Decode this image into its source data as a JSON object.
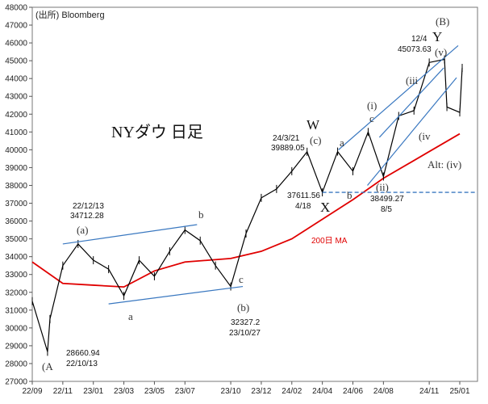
{
  "chart_data": {
    "type": "line",
    "title": "NYダウ 日足",
    "source": "(出所) Bloomberg",
    "ylim": [
      27000,
      48000
    ],
    "y_ticks": [
      27000,
      28000,
      29000,
      30000,
      31000,
      32000,
      33000,
      34000,
      35000,
      36000,
      37000,
      38000,
      39000,
      40000,
      41000,
      42000,
      43000,
      44000,
      45000,
      46000,
      47000,
      48000
    ],
    "x_ticks": [
      "22/09",
      "22/11",
      "23/01",
      "23/03",
      "23/05",
      "23/07",
      "23/10",
      "23/12",
      "24/02",
      "24/04",
      "24/06",
      "24/08",
      "24/11",
      "25/01"
    ],
    "series": [
      {
        "name": "",
        "color": "#000000",
        "x": [
          "22/09",
          "22/10",
          "22/10",
          "22/11",
          "22/12",
          "23/01",
          "23/02",
          "23/03",
          "23/04",
          "23/05",
          "23/06",
          "23/07",
          "23/08",
          "23/09",
          "23/10",
          "23/11",
          "23/12",
          "24/01",
          "24/02",
          "24/03",
          "24/04",
          "24/05",
          "24/06",
          "24/07",
          "24/08",
          "24/09",
          "24/10",
          "24/11",
          "24/12",
          "24/12",
          "25/01",
          "25/01"
        ],
        "values": [
          31500,
          28660.94,
          30500,
          33500,
          34712.28,
          33800,
          33300,
          31800,
          33800,
          32900,
          34300,
          35500,
          34900,
          33500,
          32327.2,
          35300,
          37300,
          37800,
          38800,
          39889.05,
          37611.56,
          39900,
          38800,
          41000,
          38499.27,
          41900,
          42200,
          44900,
          45073.63,
          42400,
          42100,
          44600
        ]
      },
      {
        "name": "200日 MA",
        "color": "#e00000",
        "x": [
          "22/09",
          "22/11",
          "23/01",
          "23/03",
          "23/05",
          "23/07",
          "23/10",
          "23/12",
          "24/02",
          "24/04",
          "24/06",
          "24/08",
          "24/11",
          "25/01"
        ],
        "values": [
          33700,
          32500,
          32400,
          32300,
          33200,
          33700,
          33900,
          34300,
          35000,
          36100,
          37200,
          38400,
          39900,
          40900
        ]
      }
    ],
    "annotations": {
      "chart_title": "NYダウ 日足",
      "peak_1_value": "22/12/13",
      "peak_1_price": "34712.28",
      "low_1_price": "28660.94",
      "low_1_date": "22/10/13",
      "low_2_price": "32327.2",
      "low_2_date": "23/10/27",
      "peak_w_date": "24/3/21",
      "peak_w_price": "39889.05",
      "low_x_price": "37611.56",
      "low_x_date": "4/18",
      "low_ii_price": "38499.27",
      "low_ii_date": "8/5",
      "peak_y_date": "12/4",
      "peak_y_price": "45073.63",
      "ma_label": "200日 MA",
      "alt_label": "Alt: (iv)",
      "waves": {
        "A": "(A",
        "a_1": "(a)",
        "a_2": "a",
        "b_1": "b",
        "b_2": "(b)",
        "c_1": "c",
        "W": "W",
        "c_w": "(c)",
        "X": "X",
        "a_3": "a",
        "b_3": "b",
        "c_3": "c",
        "i": "(i)",
        "ii": "(ii)",
        "iii": "(iii",
        "iv": "(iv",
        "v": "(v)",
        "Y": "Y",
        "B": "(B)"
      }
    }
  }
}
